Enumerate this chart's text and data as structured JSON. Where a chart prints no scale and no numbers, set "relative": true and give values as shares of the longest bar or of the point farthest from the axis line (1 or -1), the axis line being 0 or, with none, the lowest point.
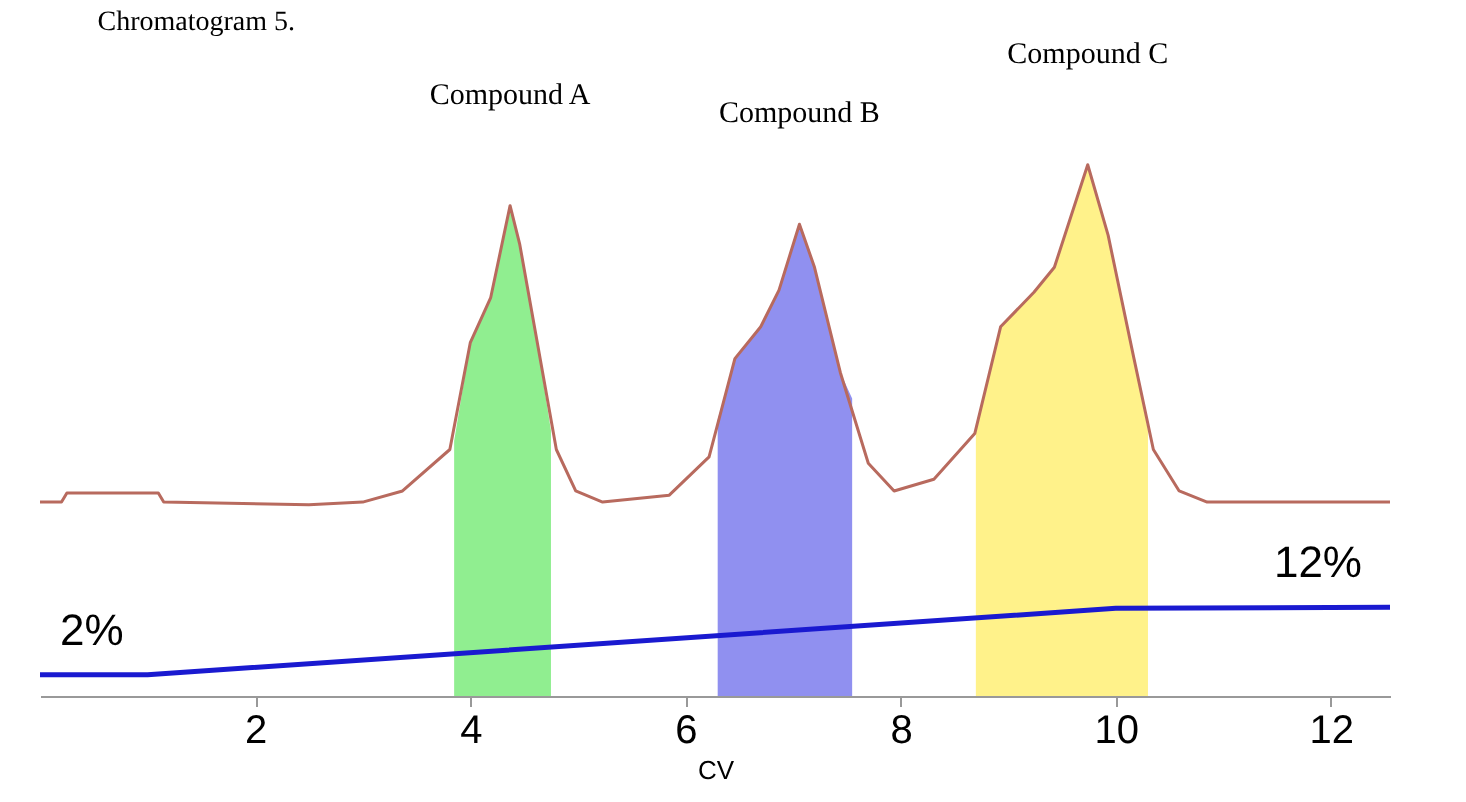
{
  "chart_data": {
    "type": "line",
    "title": "Chromatogram 5.",
    "xlabel": "CV",
    "relative": true,
    "xlim": [
      0,
      12.55
    ],
    "xticks": [
      2,
      4,
      6,
      8,
      10,
      12
    ],
    "grid": false,
    "series": [
      {
        "type": "area",
        "color": "#90ee90",
        "x": [
          3.85,
          4.0,
          4.19,
          4.37,
          4.46,
          4.61,
          4.75
        ],
        "values": [
          0.48,
          0.665,
          0.75,
          0.923,
          0.85,
          0.68,
          0.5
        ]
      },
      {
        "type": "area",
        "color": "#9090f0",
        "x": [
          6.3,
          6.46,
          6.7,
          6.87,
          7.06,
          7.2,
          7.44,
          7.55
        ],
        "values": [
          0.52,
          0.635,
          0.695,
          0.764,
          0.888,
          0.807,
          0.609,
          0.56
        ]
      },
      {
        "type": "area",
        "color": "#fff28a",
        "x": [
          8.7,
          8.93,
          9.24,
          9.43,
          9.74,
          9.93,
          10.17,
          10.3
        ],
        "values": [
          0.5,
          0.695,
          0.76,
          0.807,
          1,
          0.867,
          0.635,
          0.5
        ]
      },
      {
        "color": "#b86a5e",
        "x": [
          0,
          0.2,
          0.25,
          1.1,
          1.15,
          2.5,
          3.0,
          3.37,
          3.81,
          4.0,
          4.19,
          4.37,
          4.46,
          4.61,
          4.8,
          4.98,
          5.23,
          5.85,
          6.22,
          6.46,
          6.7,
          6.87,
          7.06,
          7.2,
          7.44,
          7.7,
          7.94,
          8.31,
          8.69,
          8.93,
          9.24,
          9.43,
          9.74,
          9.93,
          10.17,
          10.35,
          10.59,
          10.85,
          12.55
        ],
        "values": [
          0.365,
          0.365,
          0.382,
          0.382,
          0.365,
          0.36,
          0.365,
          0.386,
          0.464,
          0.665,
          0.75,
          0.923,
          0.85,
          0.68,
          0.464,
          0.386,
          0.365,
          0.378,
          0.45,
          0.635,
          0.695,
          0.764,
          0.888,
          0.807,
          0.609,
          0.438,
          0.386,
          0.408,
          0.494,
          0.695,
          0.76,
          0.807,
          1,
          0.867,
          0.635,
          0.464,
          0.386,
          0.365,
          0.365
        ]
      },
      {
        "color": "#1a1ad0",
        "x": [
          0,
          1,
          10,
          12.55
        ],
        "values": [
          0.04,
          0.04,
          0.165,
          0.167
        ]
      }
    ],
    "annotations": [
      "Compound A",
      "Compound B",
      "Compound C",
      {
        "text": "2%",
        "x": 0,
        "y": 0.04
      },
      {
        "text": "12%",
        "x": 12.55,
        "y": 0.167
      }
    ]
  }
}
